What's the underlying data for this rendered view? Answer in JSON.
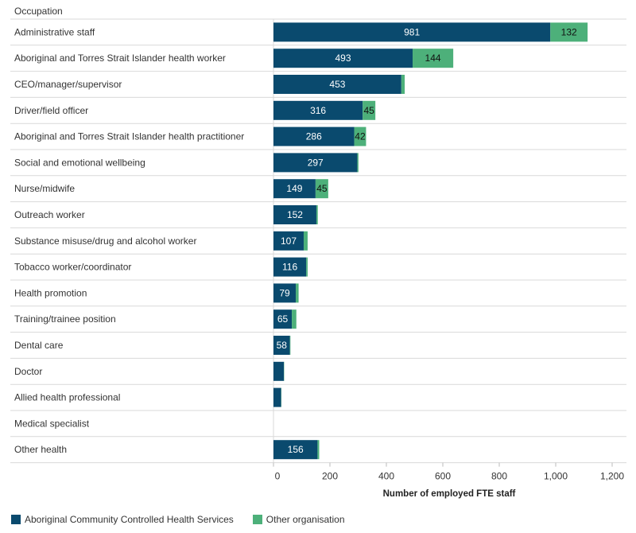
{
  "chart_data": {
    "type": "bar",
    "orientation": "horizontal",
    "stacked": true,
    "header": "Occupation",
    "xlabel": "Number of employed FTE staff",
    "xlim": [
      0,
      1200
    ],
    "xticks": [
      0,
      200,
      400,
      600,
      800,
      1000,
      1200
    ],
    "xtick_labels": [
      "0",
      "200",
      "400",
      "600",
      "800",
      "1,000",
      "1,200"
    ],
    "categories": [
      "Administrative staff",
      "Aboriginal and Torres Strait Islander health worker",
      "CEO/manager/supervisor",
      "Driver/field officer",
      "Aboriginal and Torres Strait Islander health practitioner",
      "Social and emotional wellbeing",
      "Nurse/midwife",
      "Outreach worker",
      "Substance misuse/drug and alcohol worker",
      "Tobacco worker/coordinator",
      "Health promotion",
      "Training/trainee position",
      "Dental care",
      "Doctor",
      "Allied health professional",
      "Medical specialist",
      "Other health"
    ],
    "series": [
      {
        "name": "Aboriginal Community Controlled Health Services",
        "color": "#0a4a6e",
        "values": [
          981,
          493,
          453,
          316,
          286,
          297,
          149,
          152,
          107,
          116,
          79,
          65,
          58,
          37,
          27,
          0,
          156
        ],
        "value_labels": [
          "981",
          "493",
          "453",
          "316",
          "286",
          "297",
          "149",
          "152",
          "107",
          "116",
          "79",
          "65",
          "58",
          "",
          "",
          "",
          "156"
        ]
      },
      {
        "name": "Other organisation",
        "color": "#4db07a",
        "values": [
          132,
          144,
          12,
          45,
          42,
          4,
          45,
          5,
          14,
          5,
          10,
          16,
          2,
          1,
          1,
          0,
          6
        ],
        "value_labels": [
          "132",
          "144",
          "",
          "45",
          "42",
          "",
          "45",
          "",
          "",
          "",
          "",
          "",
          "",
          "",
          "",
          "",
          ""
        ]
      }
    ],
    "legend_position": "bottom-left"
  }
}
